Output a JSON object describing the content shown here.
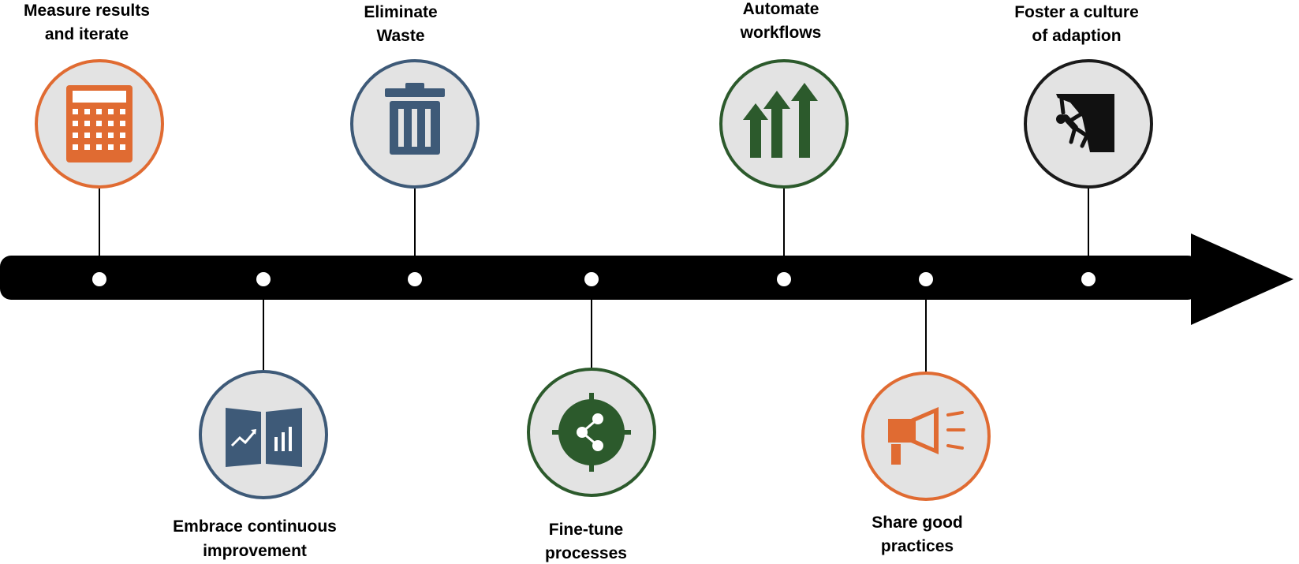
{
  "timeline": {
    "milestones": [
      {
        "id": "measure",
        "line1": "Measure results",
        "line2": "and iterate",
        "color": "#e06b32",
        "icon": "calculator-icon",
        "position": "above"
      },
      {
        "id": "embrace",
        "line1": "Embrace continuous",
        "line2": "improvement",
        "color": "#3e5a78",
        "icon": "report-board-icon",
        "position": "below"
      },
      {
        "id": "eliminate",
        "line1": "Eliminate",
        "line2": "Waste",
        "color": "#3e5a78",
        "icon": "trash-can-icon",
        "position": "above"
      },
      {
        "id": "finetune",
        "line1": "Fine-tune",
        "line2": "processes",
        "color": "#2c5a2c",
        "icon": "process-target-icon",
        "position": "below"
      },
      {
        "id": "automate",
        "line1": "Automate",
        "line2": "workflows",
        "color": "#2c5a2c",
        "icon": "up-arrows-icon",
        "position": "above"
      },
      {
        "id": "share",
        "line1": "Share good",
        "line2": "practices",
        "color": "#e06b32",
        "icon": "megaphone-icon",
        "position": "below"
      },
      {
        "id": "foster",
        "line1": "Foster a culture",
        "line2": "of adaption",
        "color": "#1a1a1a",
        "icon": "climber-icon",
        "position": "above"
      }
    ]
  }
}
